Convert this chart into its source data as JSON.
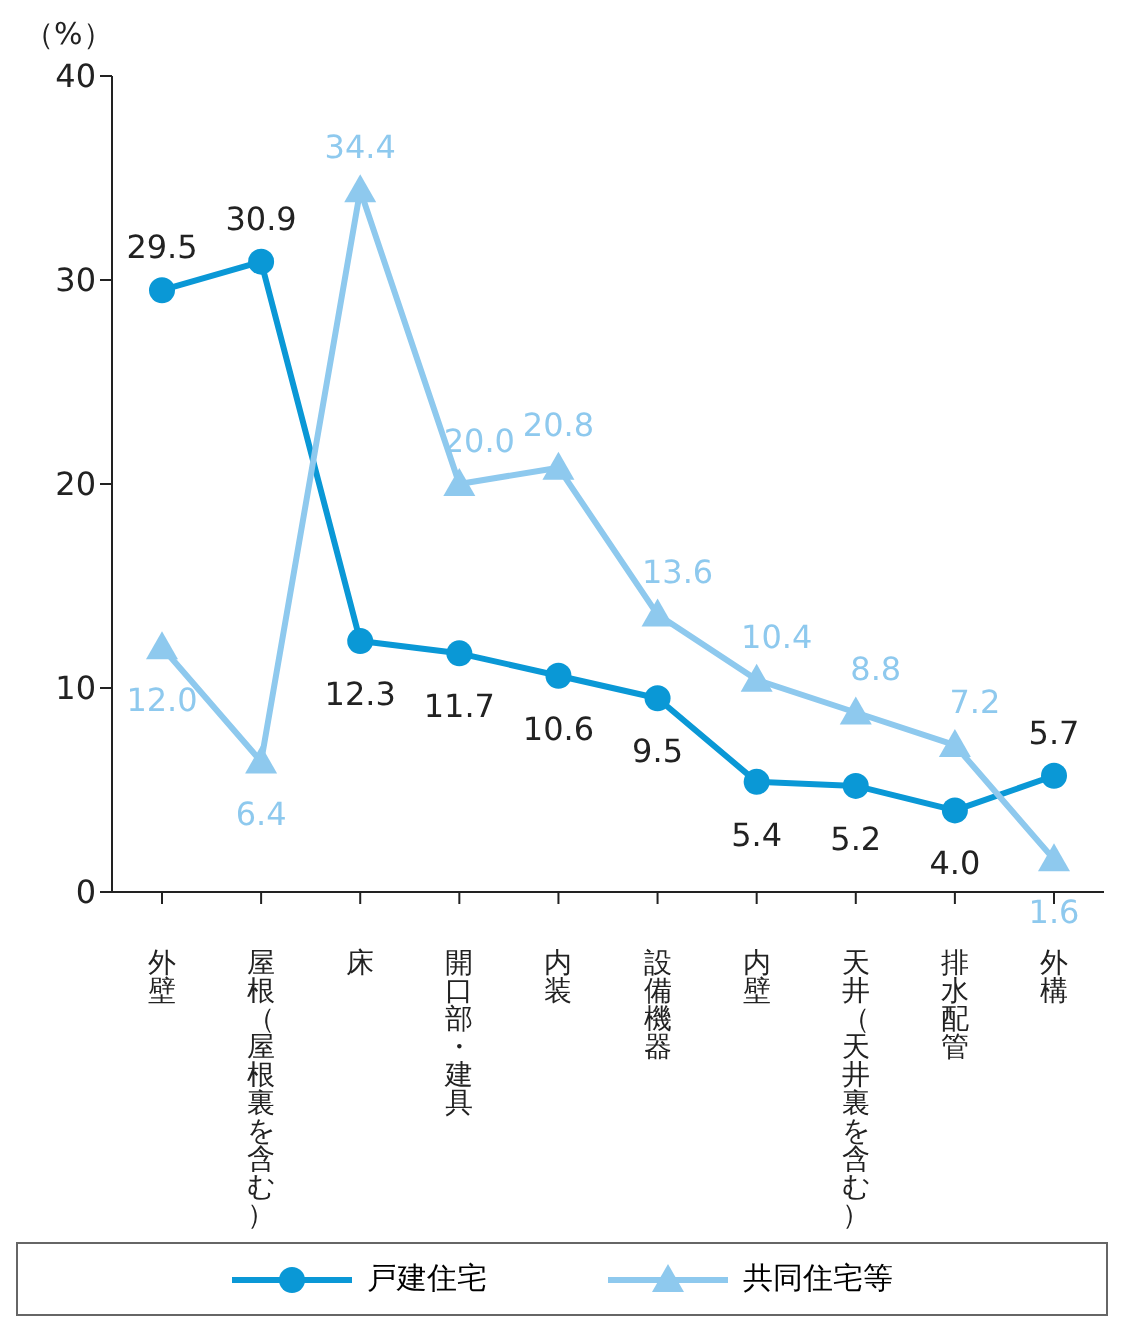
{
  "chart_data": {
    "type": "line",
    "ylabel": "（%）",
    "categories": [
      "外壁",
      "屋根（屋根裏を含む）",
      "床",
      "開口部・建具",
      "内装",
      "設備機器",
      "内壁",
      "天井（天井裏を含む）",
      "排水配管",
      "外構"
    ],
    "series": [
      {
        "name": "戸建住宅",
        "color": "#0a98d6",
        "marker": "circle",
        "values": [
          29.5,
          30.9,
          12.3,
          11.7,
          10.6,
          9.5,
          5.4,
          5.2,
          4.0,
          5.7
        ],
        "value_labels": [
          "29.5",
          "30.9",
          "12.3",
          "11.7",
          "10.6",
          "9.5",
          "5.4",
          "5.2",
          "4.0",
          "5.7"
        ]
      },
      {
        "name": "共同住宅等",
        "color": "#8ec9ee",
        "marker": "triangle",
        "values": [
          12.0,
          6.4,
          34.4,
          20.0,
          20.8,
          13.6,
          10.4,
          8.8,
          7.2,
          1.6
        ],
        "value_labels": [
          "12.0",
          "6.4",
          "34.4",
          "20.0",
          "20.8",
          "13.6",
          "10.4",
          "8.8",
          "7.2",
          "1.6"
        ]
      }
    ],
    "ylim": [
      0,
      40
    ],
    "yticks": [
      0,
      10,
      20,
      30,
      40
    ],
    "grid": false,
    "legend": "bottom"
  }
}
